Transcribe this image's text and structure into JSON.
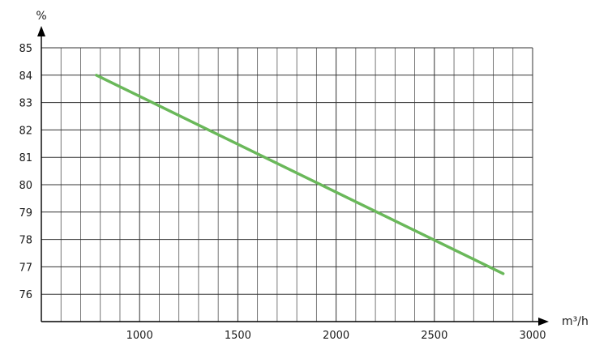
{
  "chart_data": {
    "type": "line",
    "title": "",
    "xlabel": "m³/h",
    "ylabel": "%",
    "xlim": [
      500,
      3000
    ],
    "ylim": [
      75,
      85
    ],
    "x_ticks": [
      1000,
      1500,
      2000,
      2500,
      3000
    ],
    "y_ticks": [
      76,
      77,
      78,
      79,
      80,
      81,
      82,
      83,
      84,
      85
    ],
    "grid": true,
    "legend": "none",
    "series": [
      {
        "color": "#6ab85a",
        "x": [
          780,
          2850
        ],
        "y": [
          84.0,
          76.75
        ]
      }
    ]
  }
}
